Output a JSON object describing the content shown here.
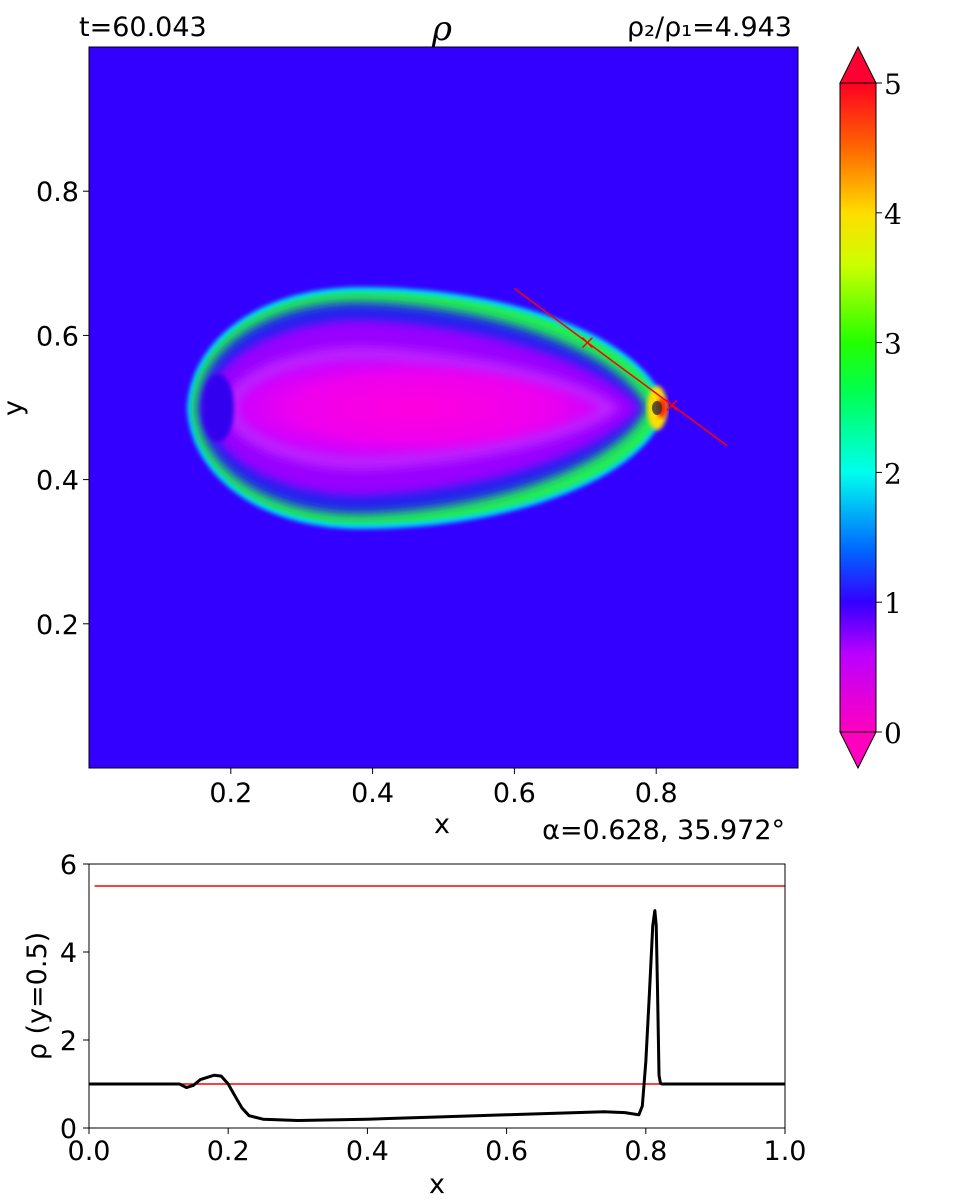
{
  "chart_data": [
    {
      "type": "heatmap",
      "title": "ρ",
      "time_label": "t=60.043",
      "ratio_label": "ρ₂/ρ₁=4.943",
      "xlabel": "x",
      "ylabel": "y",
      "xlim": [
        0,
        1
      ],
      "ylim": [
        0,
        1
      ],
      "x_ticks": [
        0.2,
        0.4,
        0.6,
        0.8
      ],
      "y_ticks": [
        0.2,
        0.4,
        0.6,
        0.8
      ],
      "x_tick_labels": [
        "0.2",
        "0.4",
        "0.6",
        "0.8"
      ],
      "y_tick_labels": [
        "0.2",
        "0.4",
        "0.6",
        "0.8"
      ],
      "colormap": "gist_rainbow_r",
      "colorbar": {
        "range": [
          0,
          5
        ],
        "ticks": [
          0,
          1,
          2,
          3,
          4,
          5
        ],
        "tick_labels": [
          "0",
          "1",
          "2",
          "3",
          "4",
          "5"
        ],
        "extend": "both"
      },
      "background_value": 1.0,
      "structure": {
        "shape": "teardrop shock shell",
        "x_range": [
          0.13,
          0.82
        ],
        "y_range": [
          0.33,
          0.67
        ],
        "interior_min_value": 0.0,
        "shell_peak_value": 3.0,
        "tip_peak_value": 4.94
      },
      "shock_line": {
        "x": [
          0.6,
          0.9
        ],
        "y": [
          0.665,
          0.447
        ],
        "color": "#ff0000",
        "markers": [
          {
            "x": 0.703,
            "y": 0.59
          },
          {
            "x": 0.822,
            "y": 0.503
          }
        ]
      },
      "angle_label": "α=0.628, 35.972°"
    },
    {
      "type": "line",
      "xlabel": "x",
      "ylabel": "ρ (y=0.5)",
      "xlim": [
        0,
        1
      ],
      "ylim": [
        0,
        6
      ],
      "x_ticks": [
        0.0,
        0.2,
        0.4,
        0.6,
        0.8,
        1.0
      ],
      "x_tick_labels": [
        "0.0",
        "0.2",
        "0.4",
        "0.6",
        "0.8",
        "1.0"
      ],
      "y_ticks": [
        0,
        2,
        4,
        6
      ],
      "y_tick_labels": [
        "0",
        "2",
        "4",
        "6"
      ],
      "reference_lines": [
        {
          "y": 5.5,
          "color": "#ff0000"
        },
        {
          "y": 1.0,
          "color": "#ff0000"
        }
      ],
      "series": [
        {
          "color": "#000000",
          "x": [
            0.0,
            0.12,
            0.13,
            0.14,
            0.15,
            0.16,
            0.18,
            0.19,
            0.2,
            0.21,
            0.22,
            0.23,
            0.25,
            0.3,
            0.4,
            0.5,
            0.6,
            0.7,
            0.74,
            0.77,
            0.79,
            0.795,
            0.8,
            0.805,
            0.81,
            0.813,
            0.815,
            0.817,
            0.819,
            0.821,
            0.823,
            0.85,
            0.9,
            1.0
          ],
          "y": [
            1.0,
            1.0,
            1.0,
            0.92,
            0.97,
            1.1,
            1.2,
            1.18,
            1.0,
            0.72,
            0.45,
            0.28,
            0.2,
            0.17,
            0.2,
            0.25,
            0.3,
            0.35,
            0.37,
            0.35,
            0.3,
            0.5,
            1.5,
            3.0,
            4.6,
            4.94,
            4.6,
            3.0,
            1.2,
            1.02,
            1.0,
            1.0,
            1.0,
            1.0
          ]
        }
      ]
    }
  ]
}
